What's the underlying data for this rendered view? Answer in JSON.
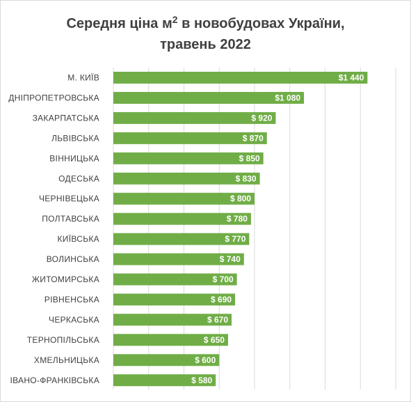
{
  "title": {
    "line1_prefix": "Середня ціна м",
    "line1_sup": "2",
    "line1_suffix": " в новобудовах України,",
    "line2": "травень 2022"
  },
  "chart_data": {
    "type": "bar",
    "orientation": "horizontal",
    "title": "Середня ціна м2 в новобудовах України, травень 2022",
    "categories": [
      "М. КИЇВ",
      "ДНІПРОПЕТРОВСЬКА",
      "ЗАКАРПАТСЬКА",
      "ЛЬВІВСЬКА",
      "ВІННИЦЬКА",
      "ОДЕСЬКА",
      "ЧЕРНІВЕЦЬКА",
      "ПОЛТАВСЬКА",
      "КИЇВСЬКА",
      "ВОЛИНСЬКА",
      "ЖИТОМИРСЬКА",
      "РІВНЕНСЬКА",
      "ЧЕРКАСЬКА",
      "ТЕРНОПІЛЬСЬКА",
      "ХМЕЛЬНИЦЬКА",
      "ІВАНО-ФРАНКІВСЬКА"
    ],
    "values": [
      1440,
      1080,
      920,
      870,
      850,
      830,
      800,
      780,
      770,
      740,
      700,
      690,
      670,
      650,
      600,
      580
    ],
    "value_labels": [
      "$1 440",
      "$1 080",
      "$ 920",
      "$ 870",
      "$ 850",
      "$ 830",
      "$ 800",
      "$ 780",
      "$ 770",
      "$ 740",
      "$ 700",
      "$ 690",
      "$ 670",
      "$ 650",
      "$ 600",
      "$ 580"
    ],
    "xlim": [
      0,
      1600
    ],
    "grid": true,
    "bar_color": "#70ad47"
  }
}
